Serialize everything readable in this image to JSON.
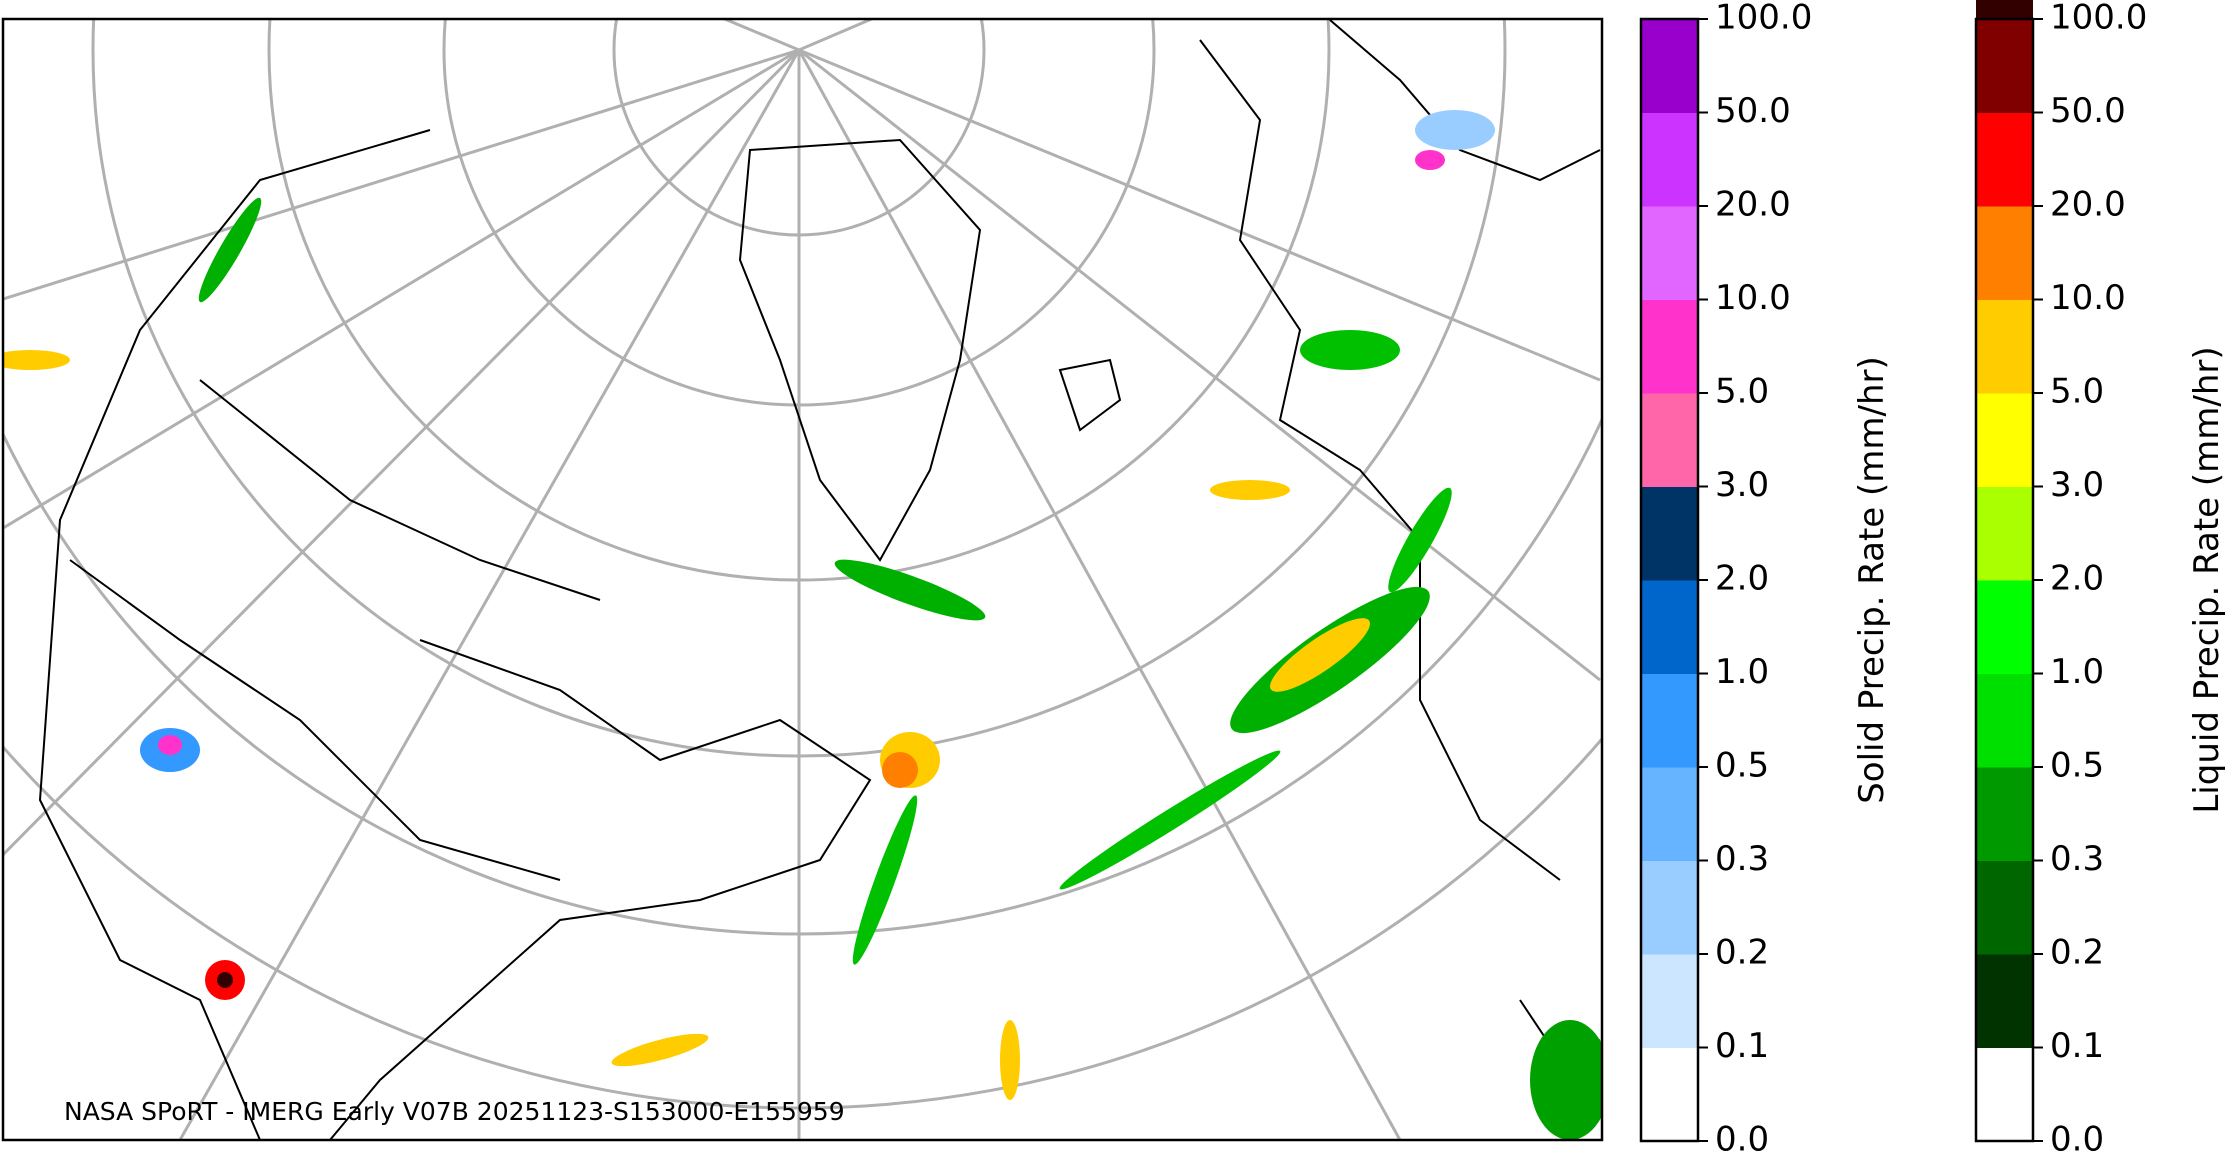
{
  "caption": "NASA SPoRT - IMERG Early V07B 20251123-S153000-E155959",
  "colorbars": [
    {
      "label": "Solid Precip. Rate (mm/hr)",
      "ticks": [
        {
          "value": 0,
          "label": "0.0"
        },
        {
          "value": 0.1,
          "label": "0.1"
        },
        {
          "value": 0.2,
          "label": "0.2"
        },
        {
          "value": 0.3,
          "label": "0.3"
        },
        {
          "value": 0.5,
          "label": "0.5"
        },
        {
          "value": 1,
          "label": "1.0"
        },
        {
          "value": 2,
          "label": "2.0"
        },
        {
          "value": 3,
          "label": "3.0"
        },
        {
          "value": 5,
          "label": "5.0"
        },
        {
          "value": 10,
          "label": "10.0"
        },
        {
          "value": 20,
          "label": "20.0"
        },
        {
          "value": 50,
          "label": "50.0"
        },
        {
          "value": 100,
          "label": "100.0"
        }
      ],
      "colors": [
        "#ffffff",
        "#cce6ff",
        "#99ccff",
        "#66b3ff",
        "#3399ff",
        "#0066cc",
        "#003366",
        "#ff66aa",
        "#ff33cc",
        "#e066ff",
        "#cc33ff",
        "#9900cc"
      ]
    },
    {
      "label": "Liquid Precip. Rate (mm/hr)",
      "ticks": [
        {
          "value": 0,
          "label": "0.0"
        },
        {
          "value": 0.1,
          "label": "0.1"
        },
        {
          "value": 0.2,
          "label": "0.2"
        },
        {
          "value": 0.3,
          "label": "0.3"
        },
        {
          "value": 0.5,
          "label": "0.5"
        },
        {
          "value": 1,
          "label": "1.0"
        },
        {
          "value": 2,
          "label": "2.0"
        },
        {
          "value": 3,
          "label": "3.0"
        },
        {
          "value": 5,
          "label": "5.0"
        },
        {
          "value": 10,
          "label": "10.0"
        },
        {
          "value": 20,
          "label": "20.0"
        },
        {
          "value": 50,
          "label": "50.0"
        },
        {
          "value": 100,
          "label": "100.0"
        }
      ],
      "colors": [
        "#ffffff",
        "#003300",
        "#006600",
        "#009900",
        "#00e000",
        "#00ff00",
        "#aaff00",
        "#ffff00",
        "#ffcc00",
        "#ff8000",
        "#ff0000",
        "#800000",
        "#330000"
      ]
    }
  ]
}
